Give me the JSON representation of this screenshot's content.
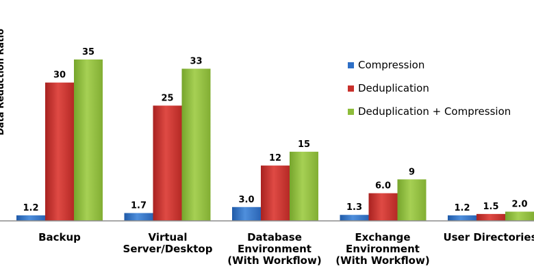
{
  "chart_data": {
    "type": "bar",
    "title": "",
    "xlabel": "",
    "ylabel": "Data Reduction Ratio",
    "ylim": [
      0,
      35
    ],
    "grid": false,
    "legend_position": "top-right",
    "categories": [
      "Backup",
      "Virtual\nServer/Desktop",
      "Database\nEnvironment\n(With Workflow)",
      "Exchange\nEnvironment\n(With Workflow)",
      "User Directories"
    ],
    "series": [
      {
        "name": "Compression",
        "color": "#2e6fc6",
        "values": [
          1.2,
          1.7,
          3.0,
          1.3,
          1.2
        ],
        "labels": [
          "1.2",
          "1.7",
          "3.0",
          "1.3",
          "1.2"
        ]
      },
      {
        "name": "Deduplication",
        "color": "#c8302b",
        "values": [
          30,
          25,
          12,
          6.0,
          1.5
        ],
        "labels": [
          "30",
          "25",
          "12",
          "6.0",
          "1.5"
        ]
      },
      {
        "name": "Deduplication + Compression",
        "color": "#8dbc3a",
        "values": [
          35,
          33,
          15,
          9,
          2.0
        ],
        "labels": [
          "35",
          "33",
          "15",
          "9",
          "2.0"
        ]
      }
    ]
  }
}
